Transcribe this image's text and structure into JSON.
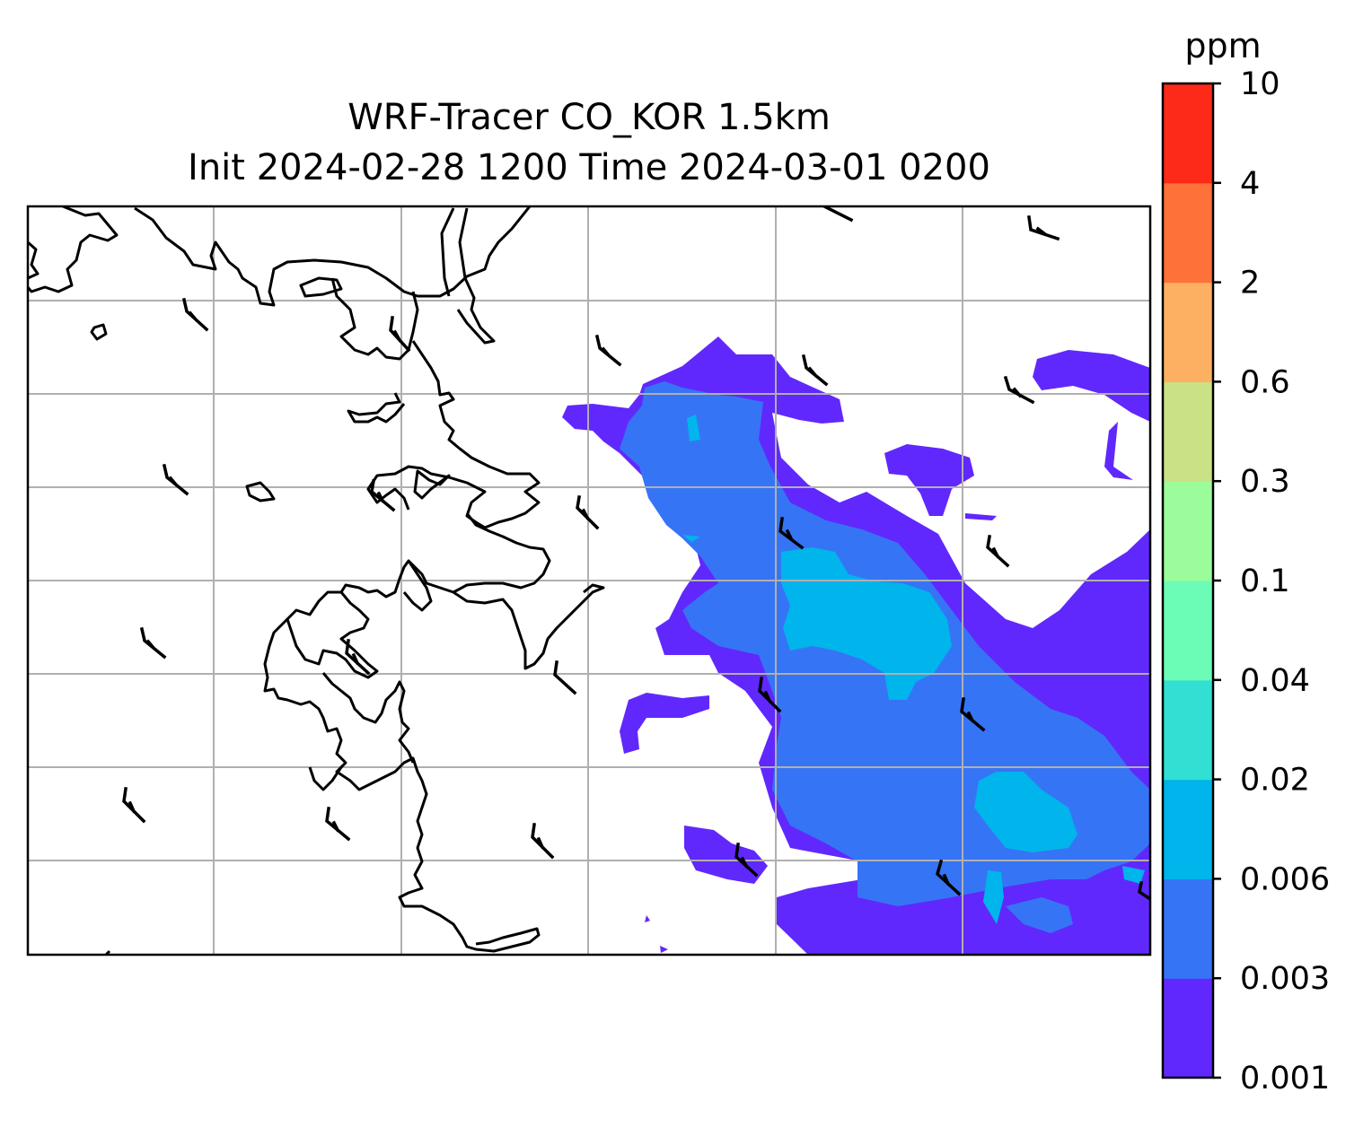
{
  "title": {
    "line1": "WRF-Tracer CO_KOR 1.5km",
    "line2": "Init 2024-02-28 1200 Time 2024-03-01 0200"
  },
  "colorbar": {
    "unit": "ppm",
    "levels": [
      "0.001",
      "0.003",
      "0.006",
      "0.02",
      "0.04",
      "0.1",
      "0.3",
      "0.6",
      "2",
      "4",
      "10"
    ],
    "colors": [
      "#6128fd",
      "#3674f6",
      "#00b4ec",
      "#32e0d3",
      "#6bfcb5",
      "#9bfc9b",
      "#cbe185",
      "#fdb061",
      "#fe7138",
      "#fd2a19"
    ]
  },
  "chart_data": {
    "type": "heatmap",
    "title": "WRF-Tracer CO_KOR 1.5km",
    "subtitle": "Init 2024-02-28 1200 Time 2024-03-01 0200",
    "variable": "CO tracer concentration",
    "unit": "ppm",
    "contour_levels": [
      0.001,
      0.003,
      0.006,
      0.02,
      0.04,
      0.1,
      0.3,
      0.6,
      2,
      4,
      10
    ],
    "visible_levels_range": [
      0.001,
      0.02
    ],
    "plume_location": "east half of map, elongated northwest to southeast",
    "grid": true,
    "overlays": [
      "coastlines",
      "wind barbs (northwesterly)"
    ]
  }
}
